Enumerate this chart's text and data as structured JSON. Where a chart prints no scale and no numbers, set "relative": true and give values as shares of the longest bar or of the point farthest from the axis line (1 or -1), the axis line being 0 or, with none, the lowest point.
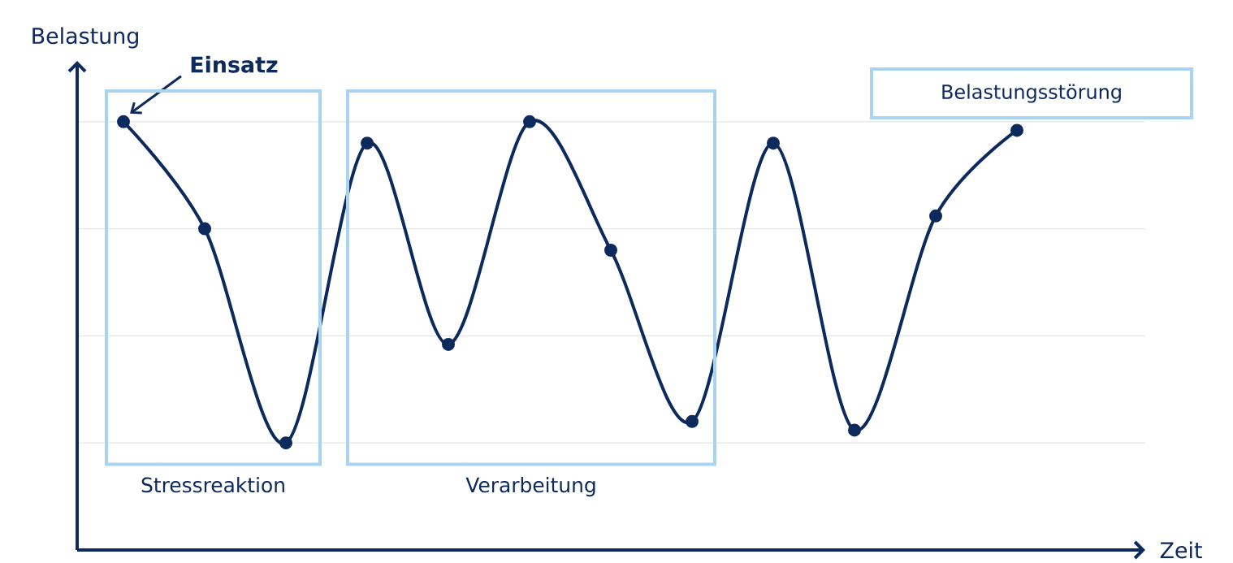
{
  "chart_data": {
    "type": "line",
    "relative": true,
    "xlabel": "Zeit",
    "ylabel": "Belastung",
    "categories": [
      null,
      null,
      null,
      null,
      null,
      null,
      null,
      null,
      null,
      null,
      null,
      null
    ],
    "values": [
      1,
      0.75,
      0.25,
      0.95,
      0.48,
      1,
      0.7,
      0.3,
      0.95,
      0.28,
      0.78,
      0.98
    ],
    "color": "#0d2a5c",
    "marker": "circle",
    "line_style": "solid",
    "grid": "y",
    "annotations": [
      "**Einsatz**",
      "Belastungsstörung",
      "Stressreaktion",
      "Verarbeitung"
    ]
  }
}
